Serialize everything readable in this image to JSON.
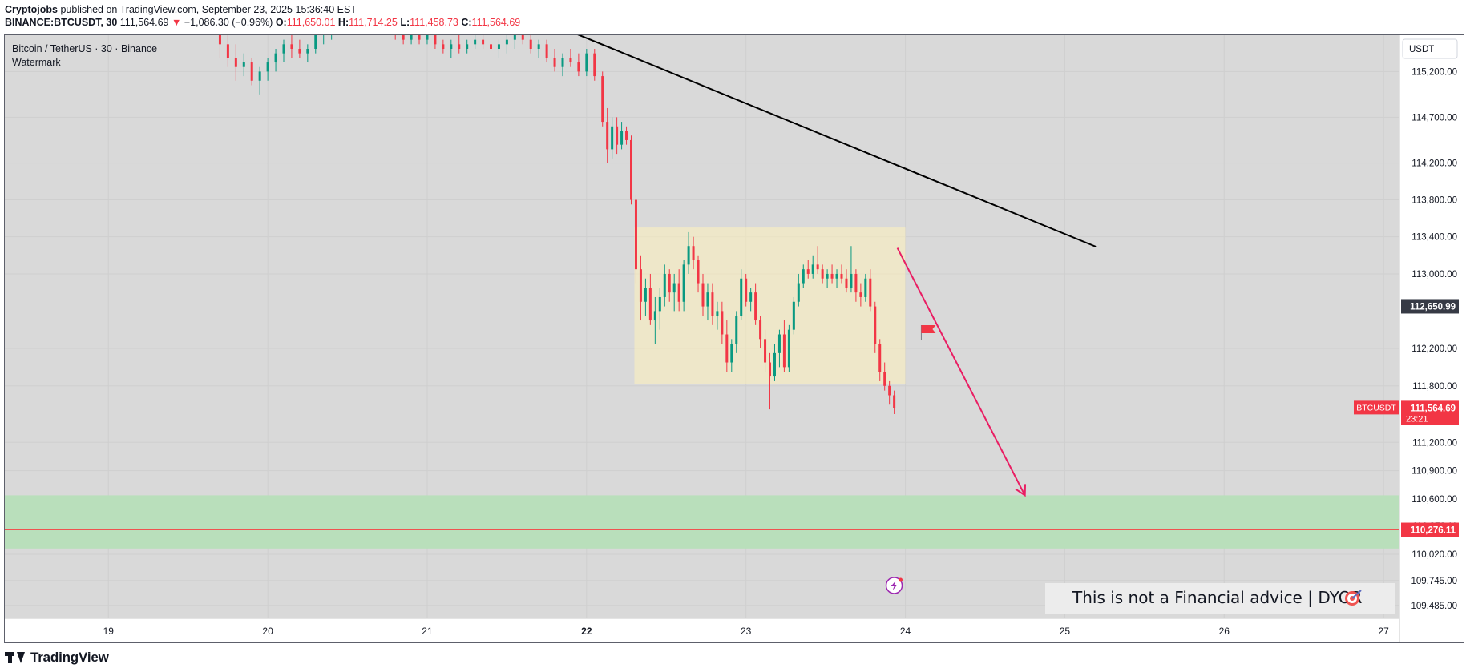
{
  "header": {
    "author": "Cryptojobs",
    "published_text": "published on TradingView.com, September 23, 2025 15:36:40 EST",
    "symbol": "BINANCE:BTCUSDT, 30",
    "last_price": "111,564.69",
    "change_arrow": "▼",
    "change": "−1,086.30 (−0.96%)",
    "open_label": "O:",
    "open": "111,650.01",
    "high_label": "H:",
    "high": "111,714.25",
    "low_label": "L:",
    "low": "111,458.73",
    "close_label": "C:",
    "close": "111,564.69"
  },
  "legend": {
    "title": "Bitcoin / TetherUS · 30 · Binance",
    "indicator": "Watermark"
  },
  "footer": {
    "brand": "TradingView"
  },
  "colors": {
    "up": "#089981",
    "down": "#f23645",
    "range_box": "#fff2bb",
    "target_zone": "#b7dfb9",
    "trendline": "#000000",
    "projection": "#e91e63",
    "price_label_dark": "#363a45"
  },
  "chart_data": {
    "type": "candlestick",
    "symbol": "BTCUSDT",
    "timeframe": "30",
    "currency": "USDT",
    "y_scale": "log",
    "ylim": [
      109350,
      115600
    ],
    "x_ticks": [
      {
        "label": "19",
        "day": 19,
        "bold": false
      },
      {
        "label": "20",
        "day": 20,
        "bold": false
      },
      {
        "label": "21",
        "day": 21,
        "bold": false
      },
      {
        "label": "22",
        "day": 22,
        "bold": true
      },
      {
        "label": "23",
        "day": 23,
        "bold": false
      },
      {
        "label": "24",
        "day": 24,
        "bold": false
      },
      {
        "label": "25",
        "day": 25,
        "bold": false
      },
      {
        "label": "26",
        "day": 26,
        "bold": false
      },
      {
        "label": "27",
        "day": 27,
        "bold": false
      }
    ],
    "xlim": [
      18.35,
      27.1
    ],
    "y_ticks": [
      {
        "label": "115,200.00",
        "value": 115200
      },
      {
        "label": "114,700.00",
        "value": 114700
      },
      {
        "label": "114,200.00",
        "value": 114200
      },
      {
        "label": "113,800.00",
        "value": 113800
      },
      {
        "label": "113,400.00",
        "value": 113400
      },
      {
        "label": "113,000.00",
        "value": 113000
      },
      {
        "label": "112,200.00",
        "value": 112200
      },
      {
        "label": "111,800.00",
        "value": 111800
      },
      {
        "label": "111,200.00",
        "value": 111200
      },
      {
        "label": "110,900.00",
        "value": 110900
      },
      {
        "label": "110,600.00",
        "value": 110600
      },
      {
        "label": "110,020.00",
        "value": 110020
      },
      {
        "label": "109,745.00",
        "value": 109745
      },
      {
        "label": "109,485.00",
        "value": 109485
      }
    ],
    "candles_ohlc": [
      [
        19.7,
        115700,
        115750,
        115350,
        115500
      ],
      [
        19.75,
        115500,
        115650,
        115250,
        115350
      ],
      [
        19.8,
        115350,
        115500,
        115100,
        115250
      ],
      [
        19.85,
        115250,
        115400,
        115150,
        115300
      ],
      [
        19.9,
        115300,
        115350,
        115050,
        115100
      ],
      [
        19.95,
        115100,
        115250,
        114950,
        115200
      ],
      [
        20.0,
        115200,
        115350,
        115100,
        115300
      ],
      [
        20.05,
        115300,
        115450,
        115200,
        115400
      ],
      [
        20.1,
        115400,
        115550,
        115300,
        115500
      ],
      [
        20.15,
        115500,
        115600,
        115350,
        115450
      ],
      [
        20.2,
        115450,
        115550,
        115350,
        115400
      ],
      [
        20.25,
        115400,
        115500,
        115300,
        115450
      ],
      [
        20.3,
        115450,
        115650,
        115400,
        115600
      ],
      [
        20.35,
        115600,
        115700,
        115500,
        115650
      ],
      [
        20.4,
        115650,
        115750,
        115550,
        115700
      ],
      [
        20.45,
        115700,
        115800,
        115600,
        115750
      ],
      [
        20.5,
        115750,
        115800,
        115650,
        115700
      ],
      [
        20.55,
        115700,
        115800,
        115650,
        115750
      ],
      [
        20.6,
        115750,
        115800,
        115650,
        115700
      ],
      [
        20.7,
        115700,
        115750,
        115600,
        115650
      ],
      [
        20.8,
        115650,
        115700,
        115550,
        115600
      ],
      [
        20.85,
        115600,
        115650,
        115500,
        115550
      ],
      [
        20.9,
        115550,
        115650,
        115500,
        115600
      ],
      [
        20.95,
        115600,
        115700,
        115500,
        115550
      ],
      [
        21.0,
        115550,
        115650,
        115500,
        115600
      ],
      [
        21.05,
        115600,
        115650,
        115450,
        115500
      ],
      [
        21.1,
        115500,
        115550,
        115400,
        115450
      ],
      [
        21.15,
        115450,
        115550,
        115350,
        115500
      ],
      [
        21.2,
        115500,
        115600,
        115400,
        115450
      ],
      [
        21.25,
        115450,
        115550,
        115400,
        115500
      ],
      [
        21.3,
        115500,
        115600,
        115450,
        115550
      ],
      [
        21.35,
        115550,
        115650,
        115450,
        115500
      ],
      [
        21.4,
        115500,
        115600,
        115400,
        115450
      ],
      [
        21.45,
        115450,
        115550,
        115350,
        115500
      ],
      [
        21.5,
        115500,
        115600,
        115400,
        115550
      ],
      [
        21.55,
        115550,
        115650,
        115450,
        115600
      ],
      [
        21.6,
        115600,
        115650,
        115500,
        115550
      ],
      [
        21.65,
        115550,
        115600,
        115400,
        115450
      ],
      [
        21.7,
        115450,
        115550,
        115350,
        115500
      ],
      [
        21.75,
        115500,
        115550,
        115300,
        115350
      ],
      [
        21.8,
        115350,
        115450,
        115200,
        115250
      ],
      [
        21.85,
        115250,
        115400,
        115150,
        115350
      ],
      [
        21.9,
        115350,
        115450,
        115250,
        115300
      ],
      [
        21.95,
        115300,
        115400,
        115150,
        115200
      ],
      [
        22.0,
        115200,
        115450,
        115150,
        115400
      ],
      [
        22.05,
        115400,
        115450,
        115100,
        115150
      ],
      [
        22.1,
        115150,
        115200,
        114600,
        114650
      ],
      [
        22.13,
        114650,
        114800,
        114200,
        114350
      ],
      [
        22.16,
        114350,
        114700,
        114250,
        114600
      ],
      [
        22.19,
        114600,
        114700,
        114300,
        114400
      ],
      [
        22.22,
        114400,
        114650,
        114350,
        114550
      ],
      [
        22.25,
        114550,
        114600,
        114400,
        114450
      ],
      [
        22.28,
        114450,
        114500,
        113750,
        113800
      ],
      [
        22.31,
        113800,
        113850,
        112900,
        113050
      ],
      [
        22.34,
        113050,
        113200,
        112500,
        112700
      ],
      [
        22.37,
        112700,
        112950,
        112550,
        112850
      ],
      [
        22.4,
        112850,
        113000,
        112450,
        112500
      ],
      [
        22.43,
        112500,
        112750,
        112250,
        112600
      ],
      [
        22.46,
        112600,
        112850,
        112400,
        112750
      ],
      [
        22.49,
        112750,
        113100,
        112650,
        113000
      ],
      [
        22.52,
        113000,
        113050,
        112700,
        112800
      ],
      [
        22.55,
        112800,
        113000,
        112600,
        112900
      ],
      [
        22.58,
        112900,
        113050,
        112600,
        112700
      ],
      [
        22.61,
        112700,
        113150,
        112600,
        113100
      ],
      [
        22.64,
        113100,
        113450,
        113000,
        113300
      ],
      [
        22.67,
        113300,
        113400,
        113050,
        113150
      ],
      [
        22.7,
        113150,
        113200,
        112800,
        112900
      ],
      [
        22.73,
        112900,
        113000,
        112550,
        112650
      ],
      [
        22.76,
        112650,
        112900,
        112500,
        112800
      ],
      [
        22.79,
        112800,
        112900,
        112450,
        112550
      ],
      [
        22.82,
        112550,
        112700,
        112400,
        112600
      ],
      [
        22.85,
        112600,
        112700,
        112250,
        112350
      ],
      [
        22.88,
        112350,
        112500,
        111950,
        112050
      ],
      [
        22.91,
        112050,
        112300,
        111950,
        112250
      ],
      [
        22.94,
        112250,
        112600,
        112150,
        112550
      ],
      [
        22.97,
        112550,
        113050,
        112500,
        112950
      ],
      [
        23.0,
        112950,
        113000,
        112650,
        112700
      ],
      [
        23.03,
        112700,
        112850,
        112600,
        112800
      ],
      [
        23.06,
        112800,
        112900,
        112450,
        112500
      ],
      [
        23.09,
        112500,
        112550,
        112200,
        112300
      ],
      [
        23.12,
        112300,
        112400,
        111950,
        112050
      ],
      [
        23.15,
        112050,
        112150,
        111550,
        111900
      ],
      [
        23.18,
        111900,
        112250,
        111850,
        112150
      ],
      [
        23.21,
        112150,
        112400,
        112000,
        112350
      ],
      [
        23.24,
        112350,
        112500,
        111950,
        112000
      ],
      [
        23.27,
        112000,
        112450,
        111950,
        112400
      ],
      [
        23.3,
        112400,
        112750,
        112350,
        112700
      ],
      [
        23.33,
        112700,
        113000,
        112650,
        112900
      ],
      [
        23.36,
        112900,
        113100,
        112850,
        113050
      ],
      [
        23.39,
        113050,
        113150,
        112950,
        113000
      ],
      [
        23.42,
        113000,
        113200,
        112950,
        113100
      ],
      [
        23.45,
        113100,
        113300,
        113000,
        113050
      ],
      [
        23.48,
        113050,
        113100,
        112900,
        112950
      ],
      [
        23.51,
        112950,
        113050,
        112850,
        113000
      ],
      [
        23.54,
        113000,
        113100,
        112900,
        112950
      ],
      [
        23.57,
        112950,
        113050,
        112850,
        113000
      ],
      [
        23.6,
        113000,
        113100,
        112900,
        112950
      ],
      [
        23.63,
        112950,
        113050,
        112800,
        112850
      ],
      [
        23.66,
        112850,
        113300,
        112800,
        113000
      ],
      [
        23.69,
        113000,
        113050,
        112700,
        112800
      ],
      [
        23.72,
        112800,
        112900,
        112650,
        112750
      ],
      [
        23.75,
        112750,
        113000,
        112700,
        112950
      ],
      [
        23.78,
        112950,
        113050,
        112600,
        112650
      ],
      [
        23.81,
        112650,
        112700,
        112150,
        112250
      ],
      [
        23.84,
        112250,
        112300,
        111850,
        111950
      ],
      [
        23.87,
        111950,
        112050,
        111750,
        111800
      ],
      [
        23.9,
        111800,
        111850,
        111600,
        111700
      ],
      [
        23.93,
        111700,
        111750,
        111500,
        111565
      ]
    ],
    "range_box": {
      "x": [
        22.3,
        24.0
      ],
      "y": [
        111820,
        113500
      ]
    },
    "target_zone": {
      "y": [
        110080,
        110640
      ],
      "line": 110276.11
    },
    "trendline": {
      "from": [
        21.65,
        115820
      ],
      "to": [
        25.2,
        113290
      ]
    },
    "projection_arrow": {
      "from": [
        23.95,
        113280
      ],
      "to": [
        24.75,
        110640
      ]
    },
    "flag_marker": {
      "x": 24.1,
      "y": 112380
    },
    "labels": {
      "currency_box": "USDT",
      "current_price": "112,650.99",
      "symbol_tag": "BTCUSDT",
      "live_price": "111,564.69",
      "countdown": "23:21",
      "target_price": "110,276.11",
      "target_dim_tick": "110,276.11",
      "disclaimer": "This is not a Financial advice | DYOR"
    },
    "icons": {
      "disclaimer_icon": "target-icon",
      "event_icon": "lightning-icon"
    }
  }
}
